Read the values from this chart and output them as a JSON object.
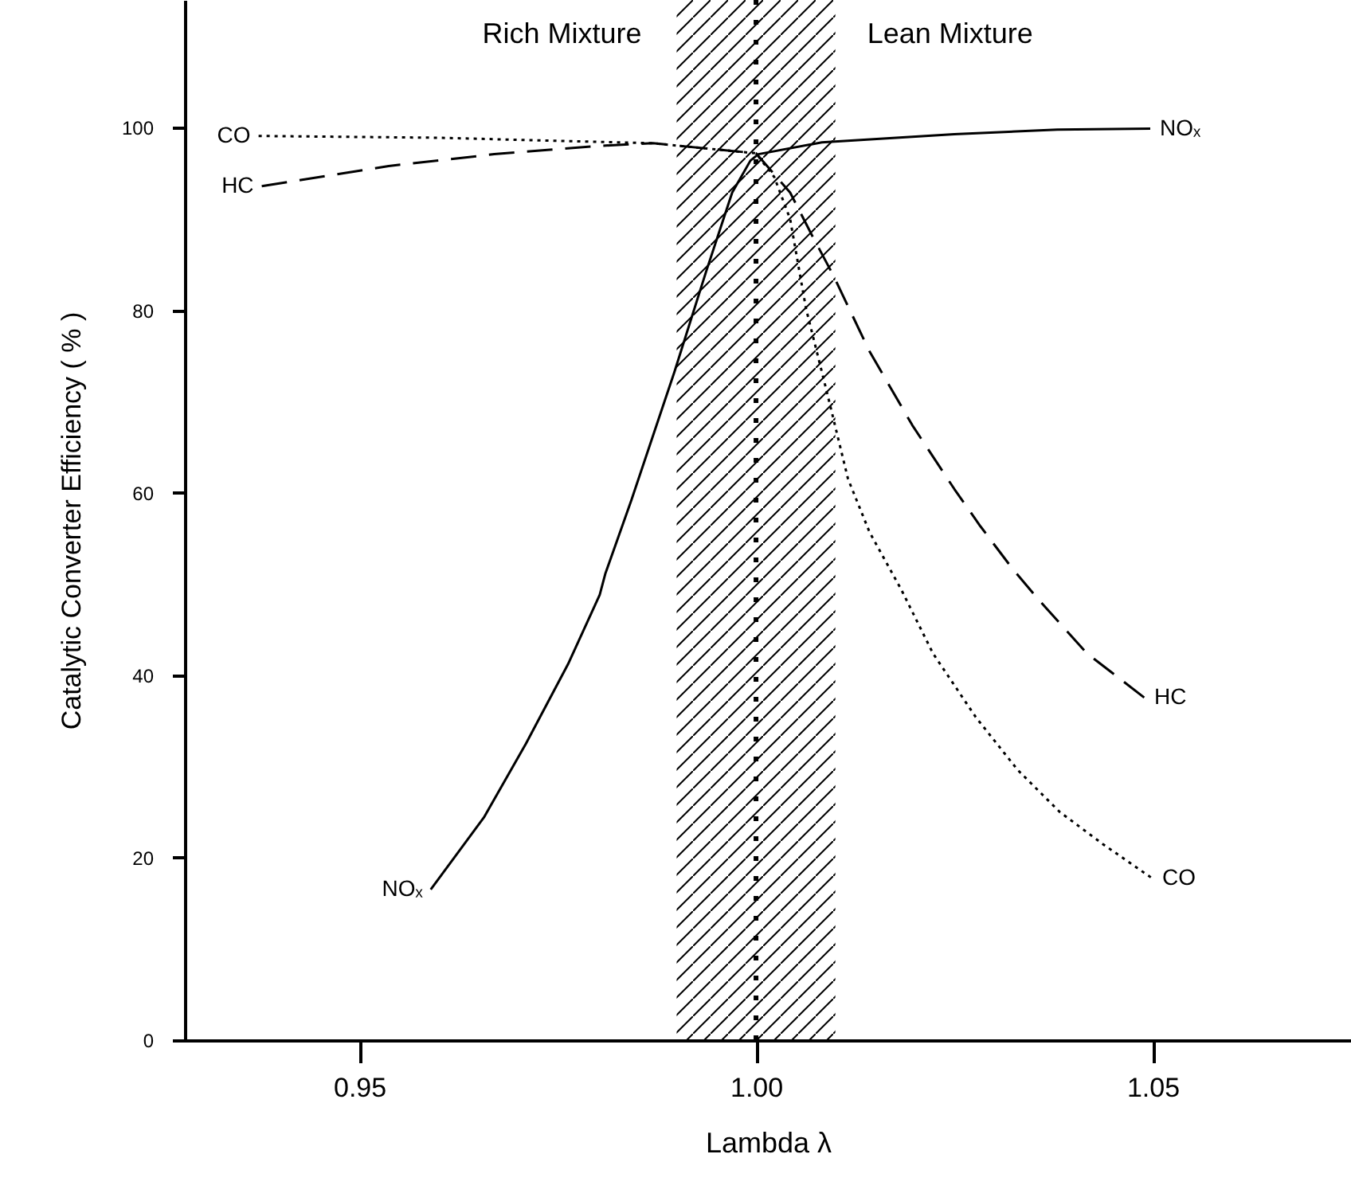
{
  "chart_data": {
    "type": "line",
    "xlabel": "Lambda λ",
    "ylabel": "Catalytic Converter Efficiency ( % )",
    "xlim": [
      0.928,
      1.075
    ],
    "ylim": [
      0,
      114
    ],
    "xticks": [
      0.95,
      {
        "value": 1.0,
        "label": "1.00"
      },
      1.05
    ],
    "yticks": [
      0,
      20,
      40,
      60,
      80,
      100
    ],
    "marker": "none",
    "series": [
      {
        "name": "CO",
        "color": "#000000",
        "line_style": "dotted",
        "x": [
          0.9373,
          0.96,
          0.987,
          1.0,
          1.0023,
          1.0043,
          1.0063,
          1.009,
          1.0116,
          1.0143,
          1.0183,
          1.0223,
          1.0277,
          1.033,
          1.0383,
          1.0437,
          1.05
        ],
        "values": [
          99.1,
          98.9,
          98.3,
          97.2,
          94.6,
          90,
          80.2,
          70.8,
          61.5,
          55.7,
          49.4,
          42.4,
          35.4,
          29.6,
          25.0,
          21.5,
          17.7
        ]
      },
      {
        "name": "HC",
        "color": "#000000",
        "line_style": "dashed",
        "x": [
          0.9377,
          0.9537,
          0.967,
          0.98,
          0.987,
          1.0,
          1.0043,
          1.007,
          1.0097,
          1.0143,
          1.0197,
          1.025,
          1.0283,
          1.0323,
          1.0357,
          1.0417,
          1.049
        ],
        "values": [
          93.6,
          95.8,
          97.1,
          98.0,
          98.3,
          97.2,
          92.9,
          88.3,
          83.9,
          75.5,
          67.4,
          60.4,
          56.3,
          51.7,
          48.2,
          42.4,
          37.5
        ]
      },
      {
        "name": "NOₓ",
        "color": "#000000",
        "line_style": "solid",
        "x": [
          0.959,
          0.9657,
          0.971,
          0.9763,
          0.9803,
          0.981,
          0.9843,
          0.9897,
          0.9937,
          0.997,
          0.9993,
          1.0003,
          1.0083,
          1.025,
          1.038,
          1.0497
        ],
        "values": [
          16.5,
          24.4,
          32.5,
          41.2,
          48.8,
          51.1,
          59.2,
          73.2,
          84.2,
          92.9,
          96.4,
          97.1,
          98.4,
          99.3,
          99.8,
          99.9
        ]
      }
    ],
    "bands": [
      {
        "axis": "x",
        "from": 0.99,
        "to": 1.01,
        "color": "#000000"
      }
    ],
    "ref_lines": [
      {
        "axis": "x",
        "value": 1.0,
        "line_style": "dotted"
      }
    ],
    "annotations": [
      "Rich Mixture",
      "Lean Mixture"
    ]
  }
}
